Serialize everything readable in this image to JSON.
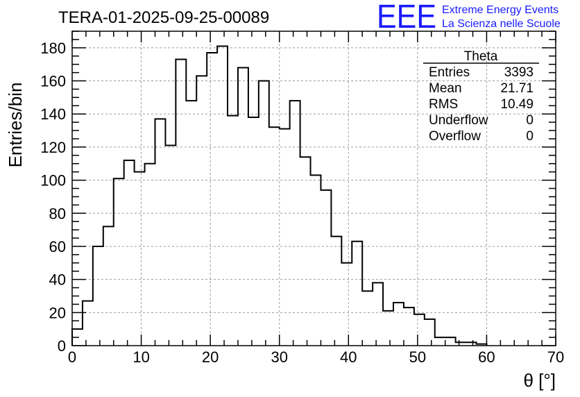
{
  "chart_data": {
    "type": "histogram",
    "title": "TERA-01-2025-09-25-00089",
    "xlabel": "θ [°]",
    "ylabel": "Entries/bin",
    "xlim": [
      0,
      70
    ],
    "ylim": [
      0,
      190
    ],
    "grid": true,
    "x_ticks": [
      0,
      10,
      20,
      30,
      40,
      50,
      60,
      70
    ],
    "y_ticks": [
      0,
      20,
      40,
      60,
      80,
      100,
      120,
      140,
      160,
      180
    ],
    "bin_width": 1.5,
    "bin_start": 0,
    "values": [
      10,
      27,
      60,
      72,
      101,
      112,
      105,
      110,
      137,
      121,
      173,
      148,
      163,
      177,
      181,
      139,
      168,
      138,
      160,
      132,
      131,
      148,
      114,
      103,
      94,
      66,
      50,
      63,
      33,
      38,
      21,
      26,
      23,
      19,
      16,
      5,
      5,
      2,
      2,
      1
    ],
    "stats": {
      "name": "Theta",
      "rows": [
        {
          "label": "Entries",
          "value": "3393"
        },
        {
          "label": "Mean",
          "value": "21.71"
        },
        {
          "label": "RMS",
          "value": "10.49"
        },
        {
          "label": "Underflow",
          "value": "0"
        },
        {
          "label": "Overflow",
          "value": "0"
        }
      ]
    }
  },
  "logo": {
    "letters": "EEE",
    "line1": "Extreme Energy Events",
    "line2": "La Scienza nelle Scuole"
  },
  "colors": {
    "logo": "#1a1aff",
    "line": "#000000",
    "grid": "#9a9a9a"
  }
}
